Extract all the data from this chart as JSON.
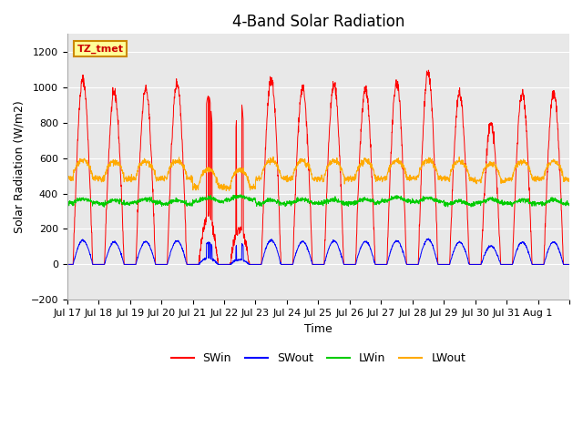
{
  "title": "4-Band Solar Radiation",
  "xlabel": "Time",
  "ylabel": "Solar Radiation (W/m2)",
  "ylim": [
    -200,
    1300
  ],
  "legend_labels": [
    "SWin",
    "SWout",
    "LWin",
    "LWout"
  ],
  "legend_colors": [
    "#ff0000",
    "#0000ff",
    "#00cc00",
    "#ffaa00"
  ],
  "annotation_text": "TZ_tmet",
  "annotation_bg": "#ffff99",
  "annotation_border": "#cc8800",
  "background_color": "#ffffff",
  "plot_bg_color": "#e8e8e8",
  "grid_color": "#ffffff",
  "tick_label_dates": [
    "Jul 17",
    "Jul 18",
    "Jul 19",
    "Jul 20",
    "Jul 21",
    "Jul 22",
    "Jul 23",
    "Jul 24",
    "Jul 25",
    "Jul 26",
    "Jul 27",
    "Jul 28",
    "Jul 29",
    "Jul 30",
    "Jul 31",
    "Aug 1"
  ],
  "yticks": [
    -200,
    0,
    200,
    400,
    600,
    800,
    1000,
    1200
  ],
  "title_fontsize": 12,
  "axis_label_fontsize": 9,
  "tick_fontsize": 8
}
